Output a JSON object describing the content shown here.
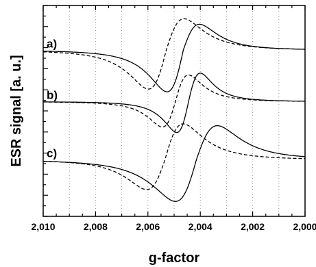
{
  "chart_data": {
    "type": "line",
    "xlabel": "g-factor",
    "ylabel": "ESR signal [a. u.]",
    "xlim": [
      2.01,
      2.0
    ],
    "x_reversed": true,
    "ylim": [
      0,
      100
    ],
    "x_ticks": [
      "2,010",
      "2,008",
      "2,006",
      "2,004",
      "2,002",
      "2,000"
    ],
    "x_tick_values": [
      2.01,
      2.008,
      2.006,
      2.004,
      2.002,
      2.0
    ],
    "grid": "vertical-dotted",
    "panels": [
      {
        "label": "a)",
        "baseline": 78.8,
        "series": [
          {
            "style": "solid",
            "center": 2.00465,
            "width": 0.00062,
            "peak_value": 93.0,
            "trough_value": 56.0
          },
          {
            "style": "dashed",
            "center": 2.0053,
            "width": 0.00068,
            "peak_value": 96.0,
            "trough_value": 57.5
          }
        ]
      },
      {
        "label": "b)",
        "baseline": 54.4,
        "series": [
          {
            "style": "solid",
            "center": 2.00445,
            "width": 0.00045,
            "peak_value": 70.0,
            "trough_value": 37.5
          },
          {
            "style": "dashed",
            "center": 2.00495,
            "width": 0.0005,
            "peak_value": 69.0,
            "trough_value": 40.5
          }
        ]
      },
      {
        "label": "c)",
        "baseline": 26.8,
        "series": [
          {
            "style": "solid",
            "center": 2.00415,
            "width": 0.0008,
            "peak_value": 45.5,
            "trough_value": 4.0
          },
          {
            "style": "dashed",
            "center": 2.00535,
            "width": 0.0007,
            "peak_value": 46.5,
            "trough_value": 10.5
          }
        ]
      }
    ]
  }
}
